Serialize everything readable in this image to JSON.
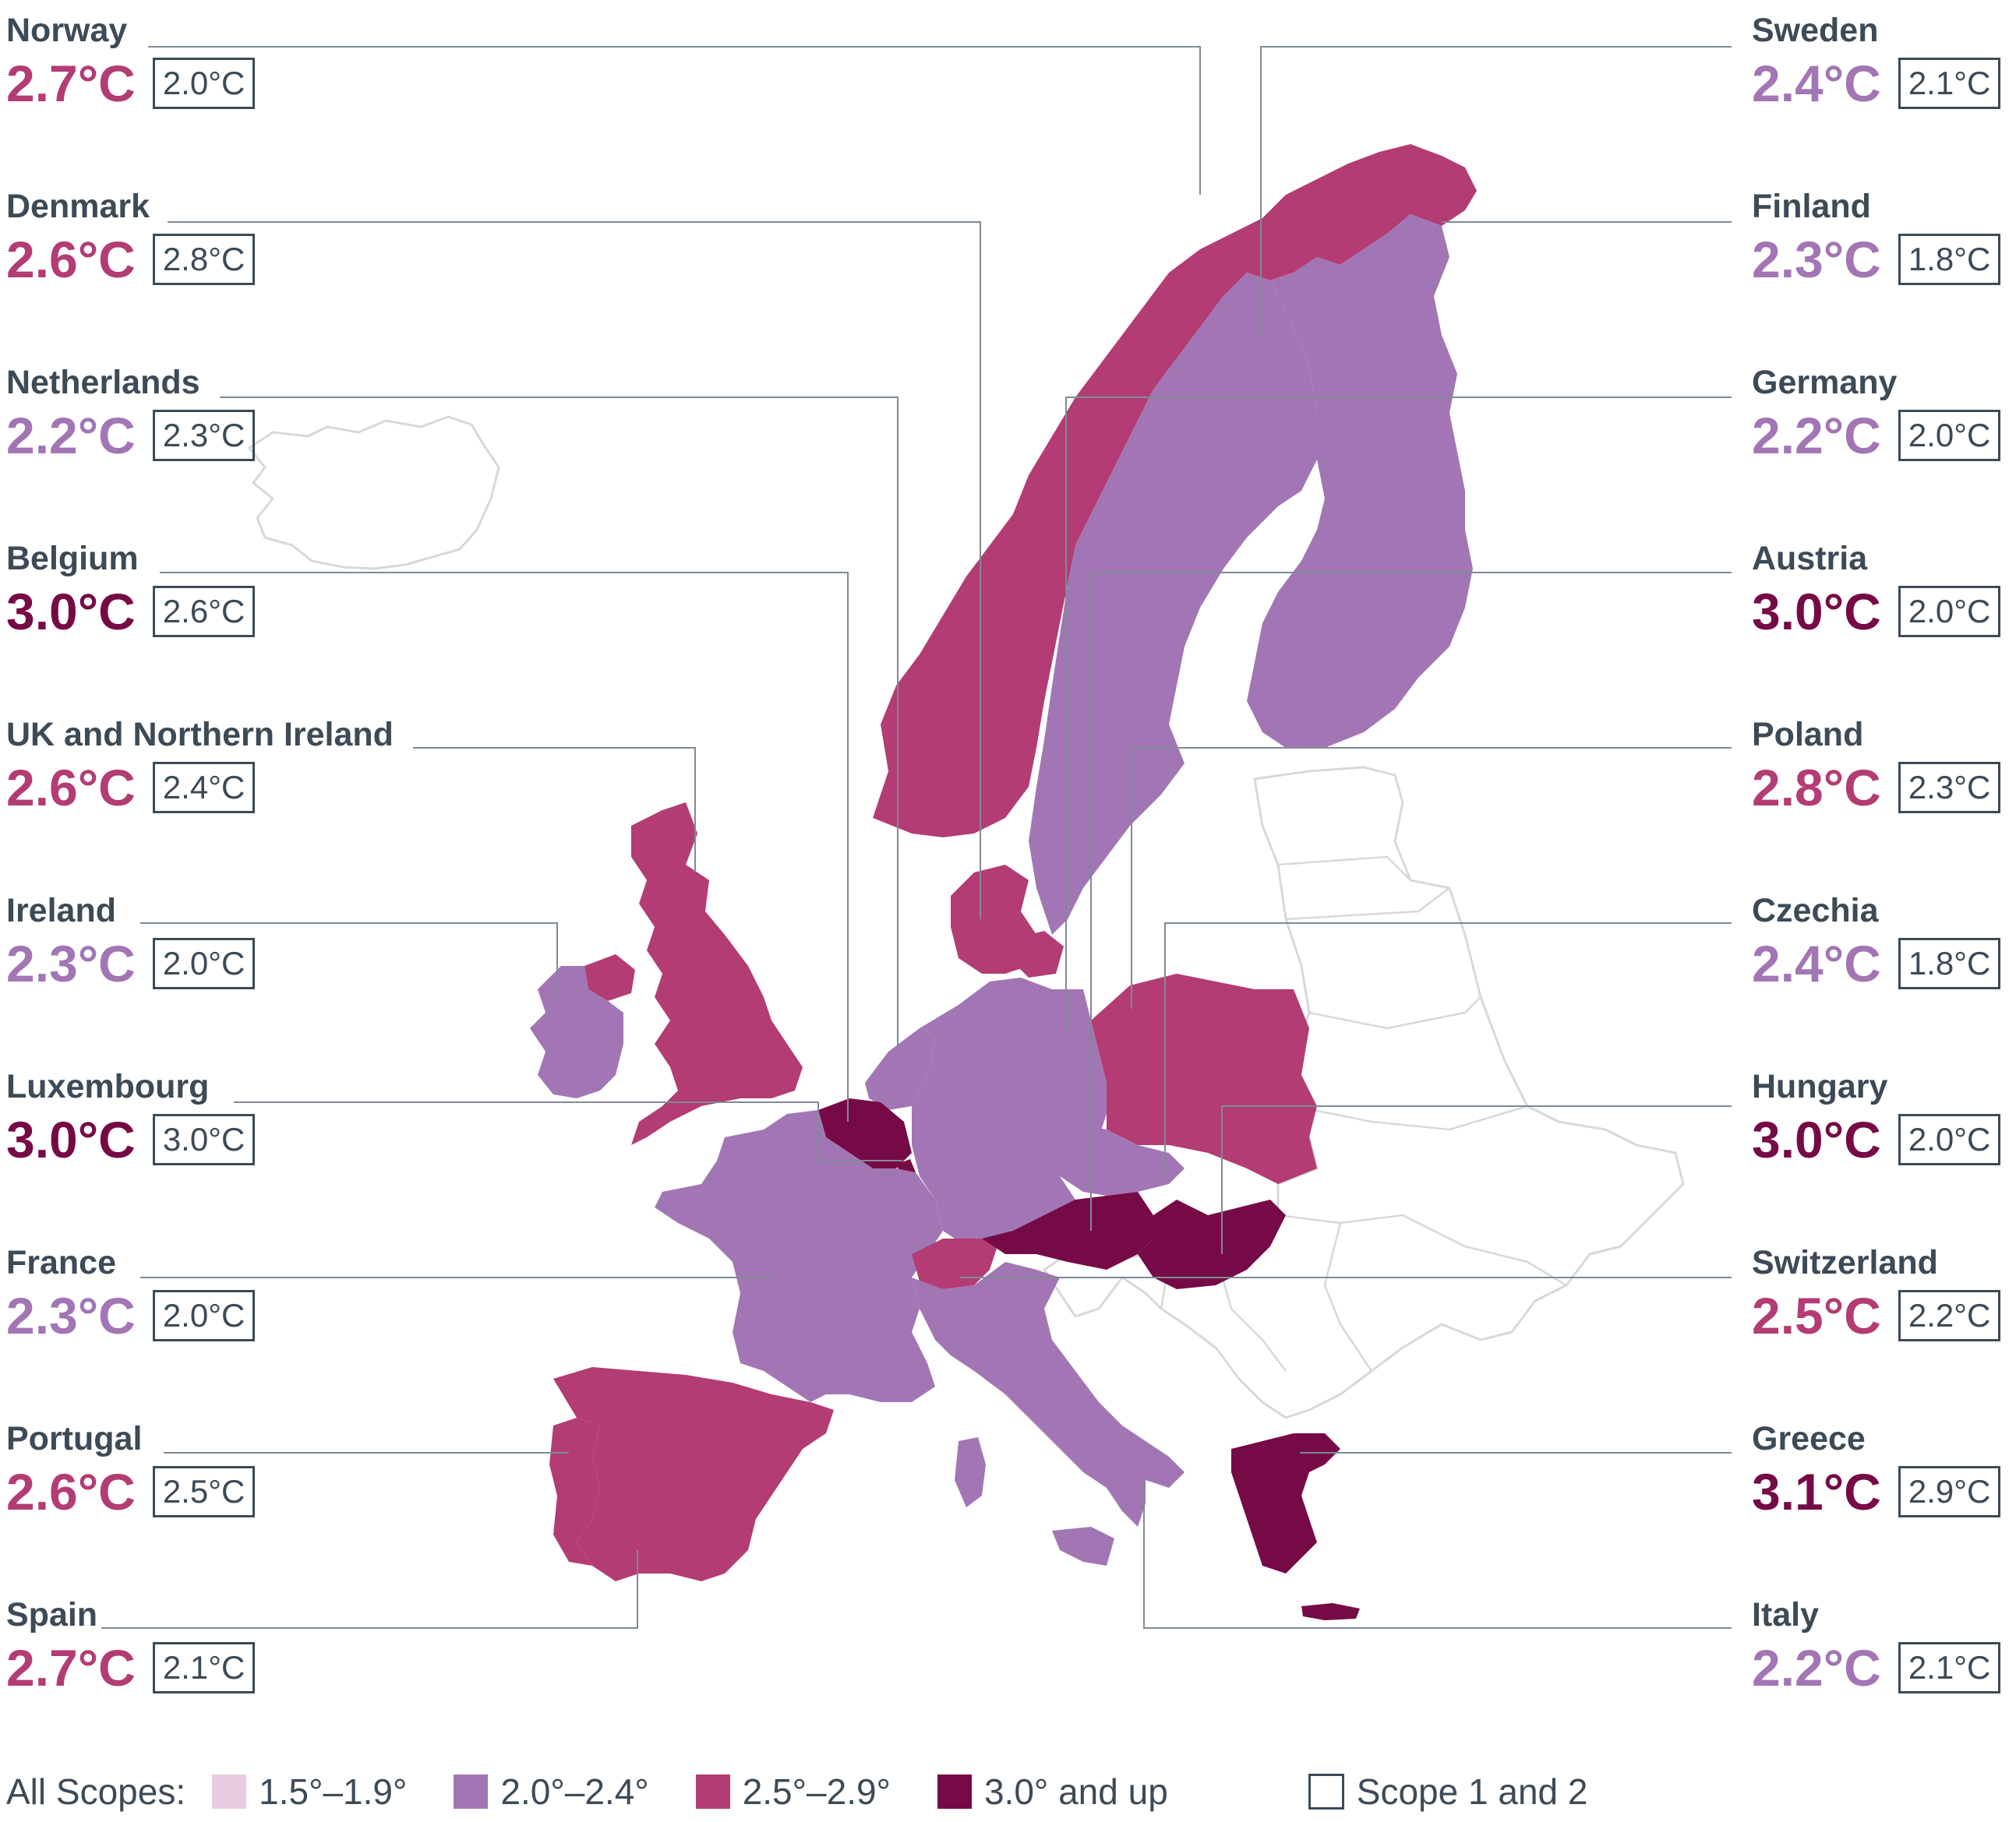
{
  "colors": {
    "range1": "#e8cbe1",
    "range2": "#a276b4",
    "range3": "#b33c74",
    "range4": "#760a46",
    "nodata_fill": "#ffffff",
    "nodata_stroke": "#d5d9de",
    "text": "#3d4a57",
    "leader": "#7f8a95"
  },
  "countries": {
    "left": [
      {
        "name": "Norway",
        "all_scopes": "2.7°C",
        "scope12": "2.0°C",
        "band": "range3"
      },
      {
        "name": "Denmark",
        "all_scopes": "2.6°C",
        "scope12": "2.8°C",
        "band": "range3"
      },
      {
        "name": "Netherlands",
        "all_scopes": "2.2°C",
        "scope12": "2.3°C",
        "band": "range2"
      },
      {
        "name": "Belgium",
        "all_scopes": "3.0°C",
        "scope12": "2.6°C",
        "band": "range4"
      },
      {
        "name": "UK and Northern Ireland",
        "all_scopes": "2.6°C",
        "scope12": "2.4°C",
        "band": "range3"
      },
      {
        "name": "Ireland",
        "all_scopes": "2.3°C",
        "scope12": "2.0°C",
        "band": "range2"
      },
      {
        "name": "Luxembourg",
        "all_scopes": "3.0°C",
        "scope12": "3.0°C",
        "band": "range4"
      },
      {
        "name": "France",
        "all_scopes": "2.3°C",
        "scope12": "2.0°C",
        "band": "range2"
      },
      {
        "name": "Portugal",
        "all_scopes": "2.6°C",
        "scope12": "2.5°C",
        "band": "range3"
      },
      {
        "name": "Spain",
        "all_scopes": "2.7°C",
        "scope12": "2.1°C",
        "band": "range3"
      }
    ],
    "right": [
      {
        "name": "Sweden",
        "all_scopes": "2.4°C",
        "scope12": "2.1°C",
        "band": "range2"
      },
      {
        "name": "Finland",
        "all_scopes": "2.3°C",
        "scope12": "1.8°C",
        "band": "range2"
      },
      {
        "name": "Germany",
        "all_scopes": "2.2°C",
        "scope12": "2.0°C",
        "band": "range2"
      },
      {
        "name": "Austria",
        "all_scopes": "3.0°C",
        "scope12": "2.0°C",
        "band": "range4"
      },
      {
        "name": "Poland",
        "all_scopes": "2.8°C",
        "scope12": "2.3°C",
        "band": "range3"
      },
      {
        "name": "Czechia",
        "all_scopes": "2.4°C",
        "scope12": "1.8°C",
        "band": "range2"
      },
      {
        "name": "Hungary",
        "all_scopes": "3.0°C",
        "scope12": "2.0°C",
        "band": "range4"
      },
      {
        "name": "Switzerland",
        "all_scopes": "2.5°C",
        "scope12": "2.2°C",
        "band": "range3"
      },
      {
        "name": "Greece",
        "all_scopes": "3.1°C",
        "scope12": "2.9°C",
        "band": "range4"
      },
      {
        "name": "Italy",
        "all_scopes": "2.2°C",
        "scope12": "2.1°C",
        "band": "range2"
      }
    ]
  },
  "legend": {
    "title": "All Scopes:",
    "items": [
      {
        "label": "1.5°–1.9°",
        "band": "range1"
      },
      {
        "label": "2.0°–2.4°",
        "band": "range2"
      },
      {
        "label": "2.5°–2.9°",
        "band": "range3"
      },
      {
        "label": "3.0° and up",
        "band": "range4"
      }
    ],
    "scope12_label": "Scope 1 and 2"
  }
}
